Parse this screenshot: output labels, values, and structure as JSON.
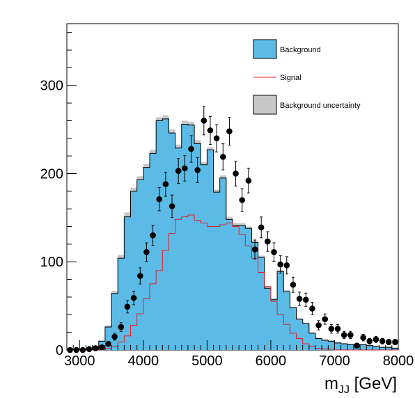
{
  "chart_data": {
    "type": "histogram",
    "xlabel": "m_JJ [GeV]",
    "xlabel_main": "m",
    "xlabel_sub": "JJ",
    "xlabel_unit": " [GeV]",
    "ylabel": "",
    "xlim": [
      2800,
      8000
    ],
    "ylim": [
      0,
      370
    ],
    "bin_width": 100,
    "x_ticks": [
      3000,
      4000,
      5000,
      6000,
      7000,
      8000
    ],
    "x_tick_labels": [
      "3000",
      "4000",
      "5000",
      "6000",
      "7000",
      "8000"
    ],
    "y_ticks": [
      0,
      100,
      200,
      300
    ],
    "y_tick_labels": [
      "0",
      "100",
      "200",
      "300"
    ],
    "legend": {
      "placement": "top-right",
      "entries": [
        {
          "label": "Background",
          "kind": "fill"
        },
        {
          "label": "Signal",
          "kind": "line"
        },
        {
          "label": "Background uncertainty",
          "kind": "band"
        }
      ]
    },
    "bin_edges": [
      2800,
      2900,
      3000,
      3100,
      3200,
      3300,
      3400,
      3500,
      3600,
      3700,
      3800,
      3900,
      4000,
      4100,
      4200,
      4300,
      4400,
      4500,
      4600,
      4700,
      4800,
      4900,
      5000,
      5100,
      5200,
      5300,
      5400,
      5500,
      5600,
      5700,
      5800,
      5900,
      6000,
      6100,
      6200,
      6300,
      6400,
      6500,
      6600,
      6700,
      6800,
      6900,
      7000,
      7100,
      7200,
      7300,
      7400,
      7500,
      7600,
      7700,
      7800,
      7900,
      8000
    ],
    "background": [
      0,
      0,
      0,
      1,
      3,
      10,
      26,
      64,
      104,
      151,
      180,
      193,
      207,
      223,
      260,
      262,
      246,
      229,
      256,
      255,
      234,
      210,
      227,
      179,
      195,
      148,
      141,
      141,
      138,
      122,
      105,
      70,
      57,
      89,
      66,
      48,
      35,
      30,
      19,
      13,
      11,
      10,
      8,
      7,
      6,
      6,
      6,
      5,
      4,
      3,
      3,
      2
    ],
    "background_uncertainty": [
      0,
      0,
      0,
      0.5,
      1,
      1,
      2,
      3,
      4,
      5,
      4,
      4,
      4,
      4,
      4,
      4,
      4,
      4,
      4,
      4,
      4,
      3,
      3,
      3,
      3,
      3,
      3,
      3,
      2,
      2,
      2,
      2,
      2,
      2,
      2,
      1,
      1,
      1,
      1,
      1,
      1,
      1,
      1,
      1,
      1,
      1,
      1,
      1,
      1,
      1,
      1,
      1
    ],
    "signal": [
      0,
      0,
      0,
      0,
      0,
      1,
      2,
      4,
      9,
      16,
      28,
      41,
      58,
      75,
      90,
      113,
      132,
      148,
      151,
      153,
      147,
      144,
      140,
      140,
      142,
      144,
      140,
      131,
      118,
      104,
      88,
      72,
      55,
      40,
      29,
      19,
      13,
      7,
      4,
      2,
      1,
      1,
      0,
      0,
      0,
      0,
      0,
      0,
      0,
      0,
      0,
      0
    ],
    "data": {
      "x": [
        2850,
        2950,
        3050,
        3150,
        3250,
        3350,
        3450,
        3550,
        3650,
        3750,
        3850,
        3950,
        4050,
        4150,
        4250,
        4350,
        4450,
        4550,
        4650,
        4750,
        4850,
        4950,
        5050,
        5150,
        5250,
        5350,
        5450,
        5550,
        5650,
        5750,
        5850,
        5950,
        6050,
        6150,
        6250,
        6350,
        6450,
        6550,
        6650,
        6750,
        6850,
        6950,
        7050,
        7150,
        7250,
        7350,
        7450,
        7550,
        7650,
        7750,
        7850,
        7950
      ],
      "y": [
        0,
        0,
        0,
        1,
        2,
        3,
        7,
        15,
        26,
        49,
        59,
        84,
        111,
        130,
        171,
        188,
        163,
        203,
        206,
        228,
        204,
        260,
        249,
        240,
        219,
        248,
        200,
        170,
        192,
        114,
        139,
        123,
        111,
        97,
        96,
        74,
        58,
        57,
        47,
        28,
        35,
        24,
        24,
        17,
        17,
        5,
        14,
        10,
        12,
        10,
        9,
        9
      ],
      "yerr": [
        0,
        0,
        0,
        1,
        1.4,
        1.7,
        2.6,
        3.9,
        5.1,
        7,
        7.7,
        9.2,
        10.5,
        11.4,
        13.1,
        13.7,
        12.8,
        14.2,
        14.4,
        15.1,
        14.3,
        16.1,
        15.8,
        15.5,
        14.8,
        15.7,
        14.1,
        13,
        13.9,
        10.7,
        11.8,
        11.1,
        10.5,
        9.8,
        9.8,
        8.6,
        7.6,
        7.5,
        6.9,
        5.3,
        5.9,
        4.9,
        4.9,
        4.1,
        4.1,
        2.2,
        3.7,
        3.2,
        3.5,
        3.2,
        3,
        3
      ]
    },
    "colors": {
      "background_fill": "#5bbbe6",
      "background_line": "#000000",
      "signal_line": "#e0202a",
      "uncertainty_fill": "#c8c8c8",
      "data_marker": "#000000"
    }
  }
}
